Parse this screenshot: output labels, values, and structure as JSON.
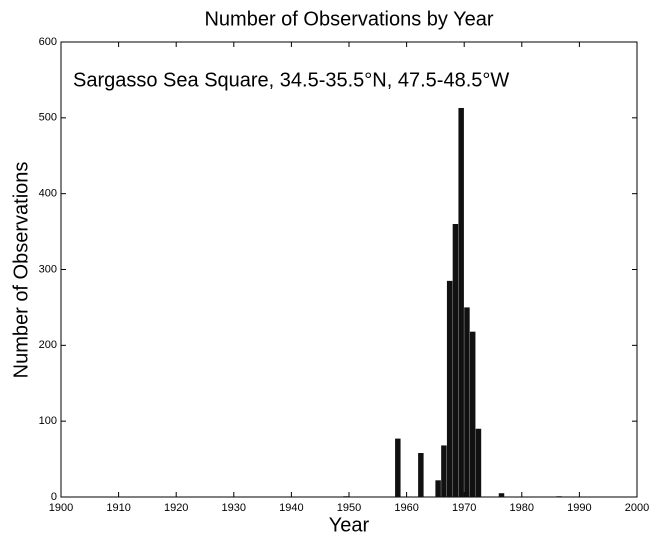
{
  "chart_data": {
    "type": "bar",
    "title": "Number of Observations by Year",
    "annotation": "Sargasso Sea Square, 34.5-35.5°N, 47.5-48.5°W",
    "xlabel": "Year",
    "ylabel": "Number of Observations",
    "x": [
      1949,
      1958,
      1962,
      1965,
      1966,
      1967,
      1968,
      1969,
      1970,
      1971,
      1972,
      1976,
      1986
    ],
    "values": [
      1,
      77,
      58,
      22,
      68,
      285,
      360,
      513,
      250,
      218,
      90,
      5,
      1
    ],
    "color": "#111111",
    "xlim": [
      1900,
      2000
    ],
    "xticks": [
      1900,
      1910,
      1920,
      1930,
      1940,
      1950,
      1960,
      1970,
      1980,
      1990,
      2000
    ],
    "ylim": [
      0,
      600
    ],
    "yticks": [
      0,
      100,
      200,
      300,
      400,
      500,
      600
    ],
    "grid": false
  }
}
